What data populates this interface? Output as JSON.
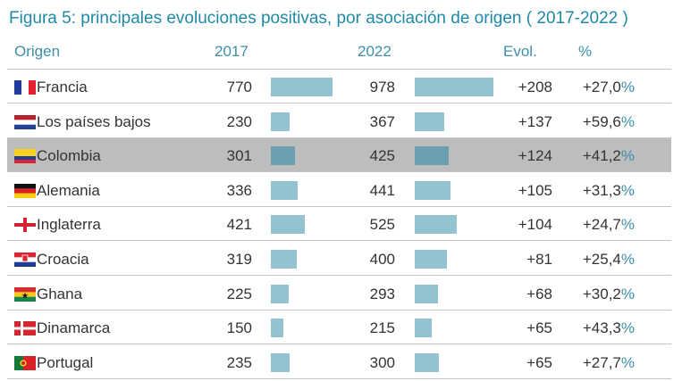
{
  "title": "Figura 5: principales evoluciones positivas, por asociación de origen ( 2017-2022 )",
  "headers": {
    "origin": "Origen",
    "y2017": "2017",
    "y2022": "2022",
    "evol": "Evol.",
    "pct": "%"
  },
  "colors": {
    "title": "#1f8aa8",
    "header": "#3e8fa9",
    "bar": "#93c2d1",
    "bar_highlight": "#6c9fb1",
    "highlight_row": "#bdbdbd"
  },
  "chart_data": {
    "type": "table",
    "title": "Figura 5: principales evoluciones positivas, por asociación de origen ( 2017-2022 )",
    "bar_scale_max": 1000,
    "columns": [
      "Origen",
      "2017",
      "2022",
      "Evol.",
      "%"
    ],
    "rows": [
      {
        "origin": "Francia",
        "flag": "france-flag",
        "v2017": 770,
        "v2022": 978,
        "evol": "+208",
        "pct_num": "+27,0",
        "pct_sign": "%",
        "highlight": false
      },
      {
        "origin": "Los países bajos",
        "flag": "netherlands-flag",
        "v2017": 230,
        "v2022": 367,
        "evol": "+137",
        "pct_num": "+59,6",
        "pct_sign": "%",
        "highlight": false
      },
      {
        "origin": "Colombia",
        "flag": "colombia-flag",
        "v2017": 301,
        "v2022": 425,
        "evol": "+124",
        "pct_num": "+41,2",
        "pct_sign": "%",
        "highlight": true
      },
      {
        "origin": "Alemania",
        "flag": "germany-flag",
        "v2017": 336,
        "v2022": 441,
        "evol": "+105",
        "pct_num": "+31,3",
        "pct_sign": "%",
        "highlight": false
      },
      {
        "origin": "Inglaterra",
        "flag": "england-flag",
        "v2017": 421,
        "v2022": 525,
        "evol": "+104",
        "pct_num": "+24,7",
        "pct_sign": "%",
        "highlight": false
      },
      {
        "origin": "Croacia",
        "flag": "croatia-flag",
        "v2017": 319,
        "v2022": 400,
        "evol": "+81",
        "pct_num": "+25,4",
        "pct_sign": "%",
        "highlight": false
      },
      {
        "origin": "Ghana",
        "flag": "ghana-flag",
        "v2017": 225,
        "v2022": 293,
        "evol": "+68",
        "pct_num": "+30,2",
        "pct_sign": "%",
        "highlight": false
      },
      {
        "origin": "Dinamarca",
        "flag": "denmark-flag",
        "v2017": 150,
        "v2022": 215,
        "evol": "+65",
        "pct_num": "+43,3",
        "pct_sign": "%",
        "highlight": false
      },
      {
        "origin": "Portugal",
        "flag": "portugal-flag",
        "v2017": 235,
        "v2022": 300,
        "evol": "+65",
        "pct_num": "+27,7",
        "pct_sign": "%",
        "highlight": false
      }
    ]
  }
}
